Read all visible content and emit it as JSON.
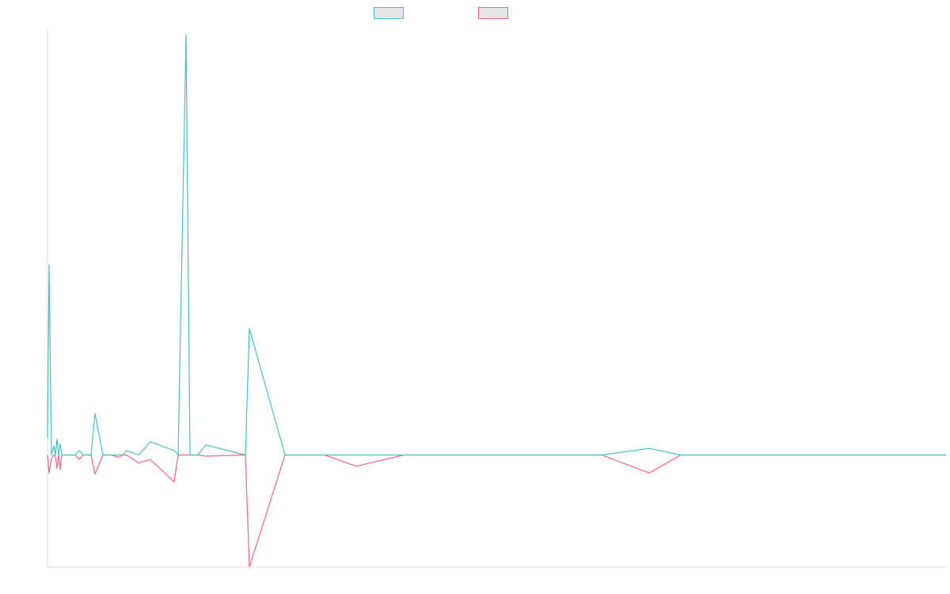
{
  "chart_data": {
    "type": "line",
    "title": "",
    "xlabel": "",
    "ylabel": "",
    "grid": false,
    "legend": "top-center",
    "ylim": [
      -100,
      380
    ],
    "x": [
      0,
      2,
      5,
      8,
      10,
      12,
      14,
      16,
      18,
      20,
      35,
      40,
      45,
      50,
      52,
      55,
      60,
      70,
      80,
      90,
      95,
      100,
      115,
      130,
      160,
      165,
      175,
      180,
      185,
      190,
      200,
      250,
      255,
      300,
      320,
      350,
      390,
      450,
      460,
      520,
      665,
      700,
      760,
      800,
      905,
      1000,
      1135
    ],
    "series": [
      {
        "name": "",
        "color": "#4bc0c0",
        "values": [
          15,
          170,
          0,
          8,
          0,
          14,
          0,
          10,
          0,
          0,
          0,
          4,
          0,
          0,
          0,
          0,
          37,
          0,
          0,
          0,
          0,
          4,
          0,
          12,
          4,
          0,
          375,
          0,
          0,
          0,
          9,
          0,
          113,
          0,
          0,
          0,
          0,
          0,
          0,
          0,
          0,
          0,
          6,
          0,
          0,
          0,
          0
        ]
      },
      {
        "name": "",
        "color": "#ff6384",
        "values": [
          0,
          -16,
          -3,
          0,
          -1,
          -12,
          0,
          -13,
          0,
          0,
          0,
          -4,
          0,
          0,
          0,
          0,
          -17,
          0,
          0,
          -2,
          0,
          0,
          -7,
          -4,
          -24,
          0,
          0,
          0,
          0,
          0,
          -1,
          0,
          -100,
          0,
          0,
          0,
          -10,
          0,
          0,
          0,
          0,
          0,
          -16,
          0,
          0,
          0,
          0
        ]
      }
    ]
  },
  "colors": {
    "axis": "#dddddd",
    "swatch_fill": "#e5e5e5"
  }
}
